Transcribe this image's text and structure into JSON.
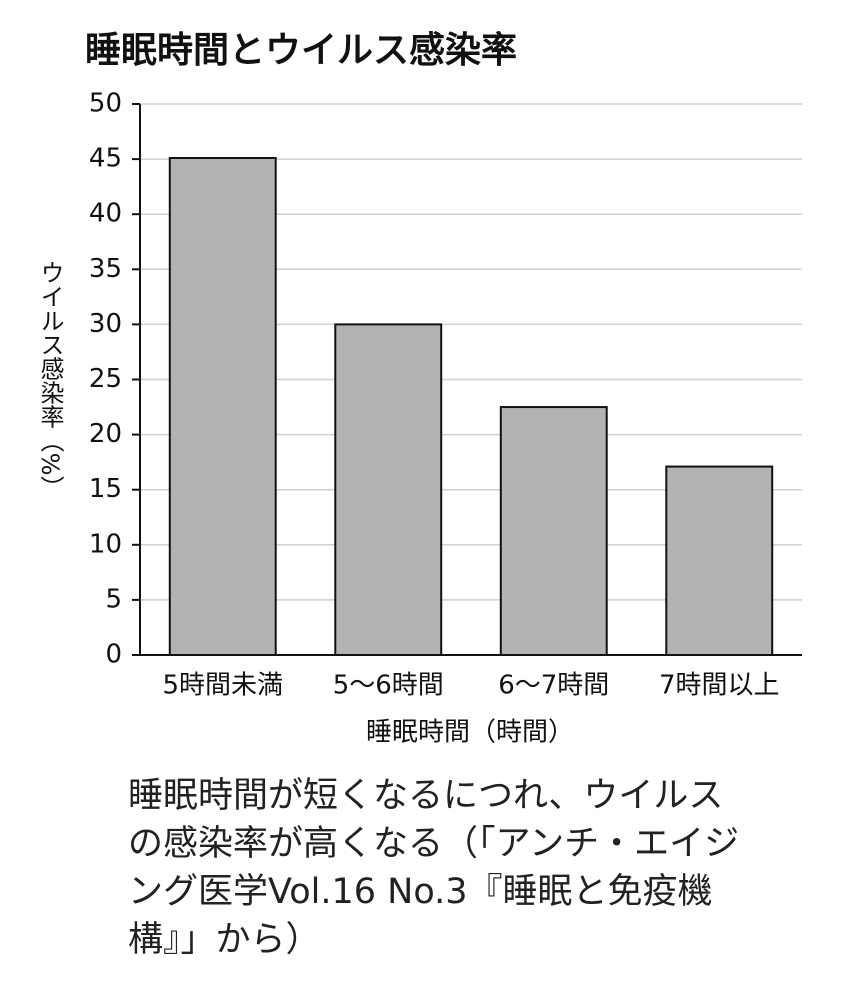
{
  "chart_data": {
    "type": "bar",
    "title": "睡眠時間とウイルス感染率",
    "categories": [
      "5時間未満",
      "5〜6時間",
      "6〜7時間",
      "7時間以上"
    ],
    "values": [
      45.1,
      30.0,
      22.5,
      17.1
    ],
    "color": "#b3b3b3",
    "ylim": [
      0,
      50
    ],
    "yticks": [
      0,
      5,
      10,
      15,
      20,
      25,
      30,
      35,
      40,
      45,
      50
    ],
    "grid": true,
    "y_label": "ウイルス感染率（%）",
    "x_label": "睡眠時間（時間）",
    "caption": "睡眠時間が短くなるにつれ、ウイルスの感染率が高くなる（「アンチ・エイジング医学Vol.16 No.3『睡眠と免疫機構』」から）"
  }
}
